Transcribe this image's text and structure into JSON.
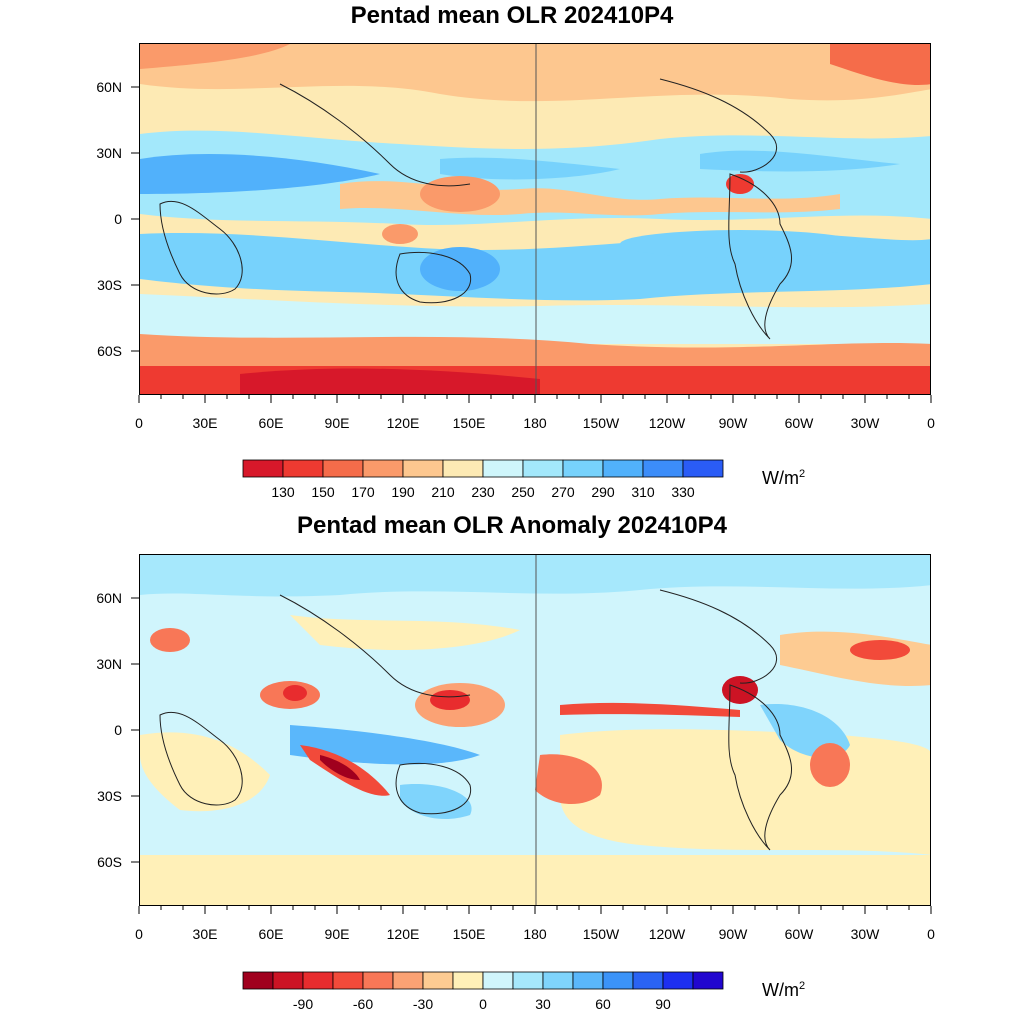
{
  "top_panel": {
    "title": "Pentad mean OLR 202410P4",
    "units_base": "W/m",
    "units_exp": "2",
    "colorbar": {
      "colors": [
        "#d7182a",
        "#ee3a31",
        "#f56c4a",
        "#fa9a6a",
        "#fdc78f",
        "#fdeab4",
        "#cff6fb",
        "#a3e8fb",
        "#77d2fc",
        "#51b1fb",
        "#3c8df9",
        "#2a5cf6"
      ],
      "tick_labels": [
        "130",
        "150",
        "170",
        "190",
        "210",
        "230",
        "250",
        "270",
        "290",
        "310",
        "330"
      ]
    },
    "lat_labels": [
      "60N",
      "30N",
      "0",
      "30S",
      "60S"
    ],
    "lon_labels": [
      "0",
      "30E",
      "60E",
      "90E",
      "120E",
      "150E",
      "180",
      "150W",
      "120W",
      "90W",
      "60W",
      "30W",
      "0"
    ]
  },
  "bottom_panel": {
    "title": "Pentad mean OLR Anomaly 202410P4",
    "units_base": "W/m",
    "units_exp": "2",
    "colorbar": {
      "colors": [
        "#a0001e",
        "#cc1324",
        "#e82c2e",
        "#f24a3a",
        "#f87757",
        "#fba274",
        "#fdcb92",
        "#fff0b8",
        "#d0f5fc",
        "#a6e8fc",
        "#7fd4fc",
        "#5ab7fb",
        "#3b93f8",
        "#2a63f3",
        "#1d2ff0",
        "#2106cf"
      ],
      "tick_labels": [
        "-90",
        "-60",
        "-30",
        "0",
        "30",
        "60",
        "90"
      ]
    },
    "lat_labels": [
      "60N",
      "30N",
      "0",
      "30S",
      "60S"
    ],
    "lon_labels": [
      "0",
      "30E",
      "60E",
      "90E",
      "120E",
      "150E",
      "180",
      "150W",
      "120W",
      "90W",
      "60W",
      "30W",
      "0"
    ]
  }
}
